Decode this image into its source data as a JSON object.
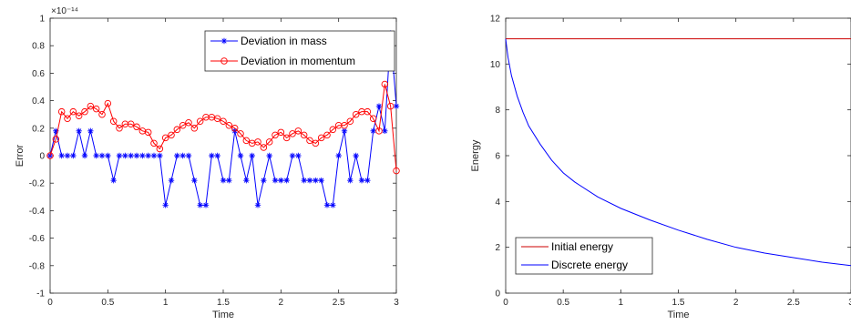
{
  "chart_data": [
    {
      "type": "line",
      "xlabel": "Time",
      "ylabel": "Error",
      "exponent_label": "×10⁻¹⁴",
      "xlim": [
        0,
        3
      ],
      "ylim": [
        -1,
        1
      ],
      "xticks": [
        "0",
        "0.5",
        "1",
        "1.5",
        "2",
        "2.5",
        "3"
      ],
      "yticks": [
        "-1",
        "-0.8",
        "-0.6",
        "-0.4",
        "-0.2",
        "0",
        "0.2",
        "0.4",
        "0.6",
        "0.8",
        "1"
      ],
      "grid": false,
      "legend_position": "top-right",
      "series": [
        {
          "name": "Deviation in mass",
          "color": "#0000ff",
          "marker": "asterisk",
          "x": [
            0,
            0.05,
            0.1,
            0.15,
            0.2,
            0.25,
            0.3,
            0.35,
            0.4,
            0.45,
            0.5,
            0.55,
            0.6,
            0.65,
            0.7,
            0.75,
            0.8,
            0.85,
            0.9,
            0.95,
            1.0,
            1.05,
            1.1,
            1.15,
            1.2,
            1.25,
            1.3,
            1.35,
            1.4,
            1.45,
            1.5,
            1.55,
            1.6,
            1.65,
            1.7,
            1.75,
            1.8,
            1.85,
            1.9,
            1.95,
            2.0,
            2.05,
            2.1,
            2.15,
            2.2,
            2.25,
            2.3,
            2.35,
            2.4,
            2.45,
            2.5,
            2.55,
            2.6,
            2.65,
            2.7,
            2.75,
            2.8,
            2.85,
            2.9,
            2.95,
            3.0
          ],
          "y": [
            0,
            0.18,
            0,
            0,
            0,
            0.18,
            0,
            0.18,
            0,
            0,
            0,
            -0.18,
            0,
            0,
            0,
            0,
            0,
            0,
            0,
            0,
            -0.36,
            -0.18,
            0,
            0,
            0,
            -0.18,
            -0.36,
            -0.36,
            0,
            0,
            -0.18,
            -0.18,
            0.18,
            0,
            -0.18,
            0,
            -0.36,
            -0.18,
            0,
            -0.18,
            -0.18,
            -0.18,
            0,
            0,
            -0.18,
            -0.18,
            -0.18,
            -0.18,
            -0.36,
            -0.36,
            0,
            0.18,
            -0.18,
            0,
            -0.18,
            -0.18,
            0.18,
            0.36,
            0.18,
            0.89,
            0.36
          ]
        },
        {
          "name": "Deviation in momentum",
          "color": "#ff0000",
          "marker": "circle",
          "x": [
            0,
            0.05,
            0.1,
            0.15,
            0.2,
            0.25,
            0.3,
            0.35,
            0.4,
            0.45,
            0.5,
            0.55,
            0.6,
            0.65,
            0.7,
            0.75,
            0.8,
            0.85,
            0.9,
            0.95,
            1.0,
            1.05,
            1.1,
            1.15,
            1.2,
            1.25,
            1.3,
            1.35,
            1.4,
            1.45,
            1.5,
            1.55,
            1.6,
            1.65,
            1.7,
            1.75,
            1.8,
            1.85,
            1.9,
            1.95,
            2.0,
            2.05,
            2.1,
            2.15,
            2.2,
            2.25,
            2.3,
            2.35,
            2.4,
            2.45,
            2.5,
            2.55,
            2.6,
            2.65,
            2.7,
            2.75,
            2.8,
            2.85,
            2.9,
            2.95,
            3.0
          ],
          "y": [
            0,
            0.12,
            0.32,
            0.27,
            0.32,
            0.29,
            0.32,
            0.36,
            0.34,
            0.3,
            0.38,
            0.25,
            0.2,
            0.23,
            0.23,
            0.21,
            0.18,
            0.17,
            0.09,
            0.05,
            0.13,
            0.15,
            0.19,
            0.22,
            0.24,
            0.2,
            0.25,
            0.28,
            0.28,
            0.27,
            0.25,
            0.22,
            0.2,
            0.16,
            0.11,
            0.09,
            0.1,
            0.06,
            0.1,
            0.15,
            0.17,
            0.13,
            0.16,
            0.18,
            0.15,
            0.11,
            0.09,
            0.13,
            0.15,
            0.19,
            0.22,
            0.22,
            0.25,
            0.3,
            0.32,
            0.32,
            0.27,
            0.18,
            0.52,
            0.36,
            -0.11
          ]
        }
      ]
    },
    {
      "type": "line",
      "xlabel": "Time",
      "ylabel": "Energy",
      "xlim": [
        0,
        3
      ],
      "ylim": [
        0,
        12
      ],
      "xticks": [
        "0",
        "0.5",
        "1",
        "1.5",
        "2",
        "2.5",
        "3"
      ],
      "yticks": [
        "0",
        "2",
        "4",
        "6",
        "8",
        "10",
        "12"
      ],
      "grid": false,
      "legend_position": "bottom-left",
      "series": [
        {
          "name": "Initial energy",
          "color": "#cc0000",
          "x": [
            0,
            3
          ],
          "y": [
            11.1,
            11.1
          ]
        },
        {
          "name": "Discrete energy",
          "color": "#0000ff",
          "x": [
            0,
            0.02,
            0.05,
            0.1,
            0.15,
            0.2,
            0.3,
            0.4,
            0.5,
            0.6,
            0.8,
            1.0,
            1.25,
            1.5,
            1.75,
            2.0,
            2.25,
            2.5,
            2.75,
            3.0
          ],
          "y": [
            11.1,
            10.3,
            9.5,
            8.6,
            7.9,
            7.3,
            6.5,
            5.8,
            5.25,
            4.85,
            4.2,
            3.7,
            3.2,
            2.75,
            2.35,
            2.0,
            1.75,
            1.55,
            1.35,
            1.2
          ]
        }
      ]
    }
  ]
}
